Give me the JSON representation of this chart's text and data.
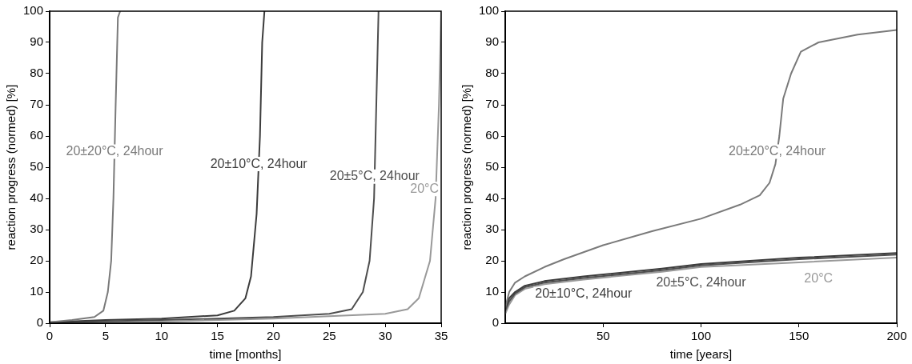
{
  "chart_data": [
    {
      "type": "line",
      "xlabel": "time [months]",
      "ylabel": "reaction progress (normed) [%]",
      "xlim": [
        0,
        35
      ],
      "xticks": [
        0,
        5,
        10,
        15,
        20,
        25,
        30,
        35
      ],
      "ylim": [
        0,
        100
      ],
      "yticks": [
        0,
        10,
        20,
        30,
        40,
        50,
        60,
        70,
        80,
        90,
        100
      ],
      "grid": false,
      "legend": false,
      "marker": "none",
      "series": [
        {
          "name": "20±20°C, 24hour",
          "color": "#7a7a7a",
          "x": [
            0,
            2,
            4,
            4.8,
            5.2,
            5.5,
            5.7,
            5.9,
            6.1,
            6.3
          ],
          "values": [
            0.3,
            1,
            2,
            4,
            10,
            20,
            40,
            70,
            98,
            100
          ]
        },
        {
          "name": "20±10°C, 24hour",
          "color": "#3c3c3c",
          "x": [
            0,
            5,
            10,
            15,
            16.5,
            17.5,
            18,
            18.5,
            18.8,
            19,
            19.2
          ],
          "values": [
            0.3,
            1,
            1.5,
            2.5,
            4,
            8,
            15,
            35,
            60,
            90,
            100
          ]
        },
        {
          "name": "20±5°C, 24hour",
          "color": "#4e4e4e",
          "x": [
            0,
            10,
            20,
            25,
            27,
            28,
            28.6,
            29,
            29.2,
            29.4
          ],
          "values": [
            0.2,
            1,
            2,
            3,
            4.5,
            10,
            20,
            40,
            70,
            100
          ]
        },
        {
          "name": "20°C",
          "color": "#999999",
          "x": [
            0,
            10,
            20,
            30,
            32,
            33,
            34,
            34.5,
            34.8,
            35
          ],
          "values": [
            0,
            0.5,
            1.5,
            3,
            4.5,
            8,
            20,
            40,
            70,
            100
          ]
        }
      ]
    },
    {
      "type": "line",
      "xlabel": "time [years]",
      "ylabel": "reaction progress (normed) [%]",
      "xlim": [
        0,
        200
      ],
      "xticks": [
        50,
        100,
        150,
        200
      ],
      "ylim": [
        0,
        100
      ],
      "yticks": [
        0,
        10,
        20,
        30,
        40,
        50,
        60,
        70,
        80,
        90,
        100
      ],
      "grid": false,
      "legend": false,
      "marker": "none",
      "series": [
        {
          "name": "20±20°C, 24hour",
          "color": "#7a7a7a",
          "x": [
            0,
            2,
            5,
            10,
            20,
            30,
            50,
            75,
            100,
            120,
            130,
            135,
            138,
            140,
            142,
            146,
            151,
            160,
            180,
            200
          ],
          "values": [
            5,
            10,
            13,
            15,
            18,
            20.5,
            25,
            29.5,
            33.5,
            38,
            41,
            45,
            51,
            60,
            72,
            80,
            87,
            90,
            92.5,
            94
          ]
        },
        {
          "name": "20±10°C, 24hour",
          "color": "#3c3c3c",
          "x": [
            0,
            2,
            5,
            10,
            20,
            40,
            80,
            100,
            150,
            200
          ],
          "values": [
            5,
            8,
            10,
            12,
            13.5,
            15,
            17.5,
            19,
            21,
            22.5
          ]
        },
        {
          "name": "20±5°C, 24hour",
          "color": "#4e4e4e",
          "x": [
            0,
            2,
            5,
            10,
            20,
            40,
            80,
            100,
            150,
            200
          ],
          "values": [
            4,
            7,
            9.5,
            11.5,
            13,
            14.5,
            17,
            18.5,
            20.5,
            22
          ]
        },
        {
          "name": "20°C",
          "color": "#999999",
          "x": [
            0,
            2,
            5,
            10,
            20,
            40,
            80,
            100,
            150,
            200
          ],
          "values": [
            3,
            6,
            9,
            11,
            12.5,
            14,
            16.5,
            18,
            19.5,
            21
          ]
        }
      ]
    }
  ]
}
